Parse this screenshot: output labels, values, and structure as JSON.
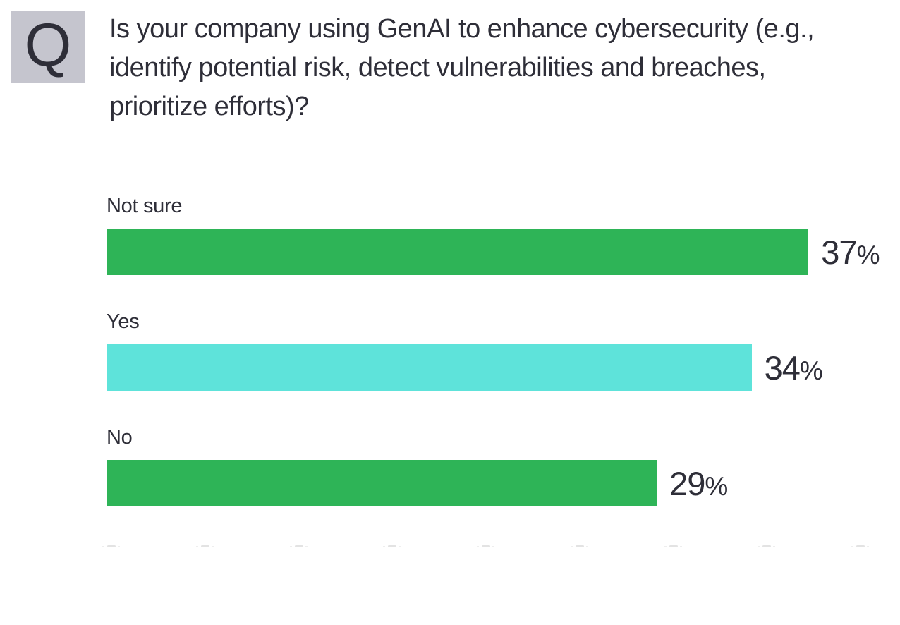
{
  "question_badge": {
    "letter": "Q",
    "bg_color": "#c5c5ce",
    "text_color": "#2e2e38"
  },
  "question": {
    "text": "Is your company using GenAI to enhance cybersecurity (e.g., identify potential risk, detect vulnerabilities and breaches, prioritize efforts)?"
  },
  "chart_data": {
    "type": "bar",
    "orientation": "horizontal",
    "title": "",
    "xlabel": "",
    "ylabel": "",
    "categories": [
      "Not sure",
      "Yes",
      "No"
    ],
    "values": [
      37,
      34,
      29
    ],
    "value_labels": [
      "37%",
      "34%",
      "29%"
    ],
    "bar_colors": [
      "#2eb457",
      "#5ee3da",
      "#2eb457"
    ],
    "xlim": [
      0,
      40
    ],
    "x_ticks": [
      0,
      5,
      10,
      15,
      20,
      25,
      30,
      35,
      40
    ],
    "grid": false,
    "legend": false,
    "text_color": "#2e2e38"
  }
}
